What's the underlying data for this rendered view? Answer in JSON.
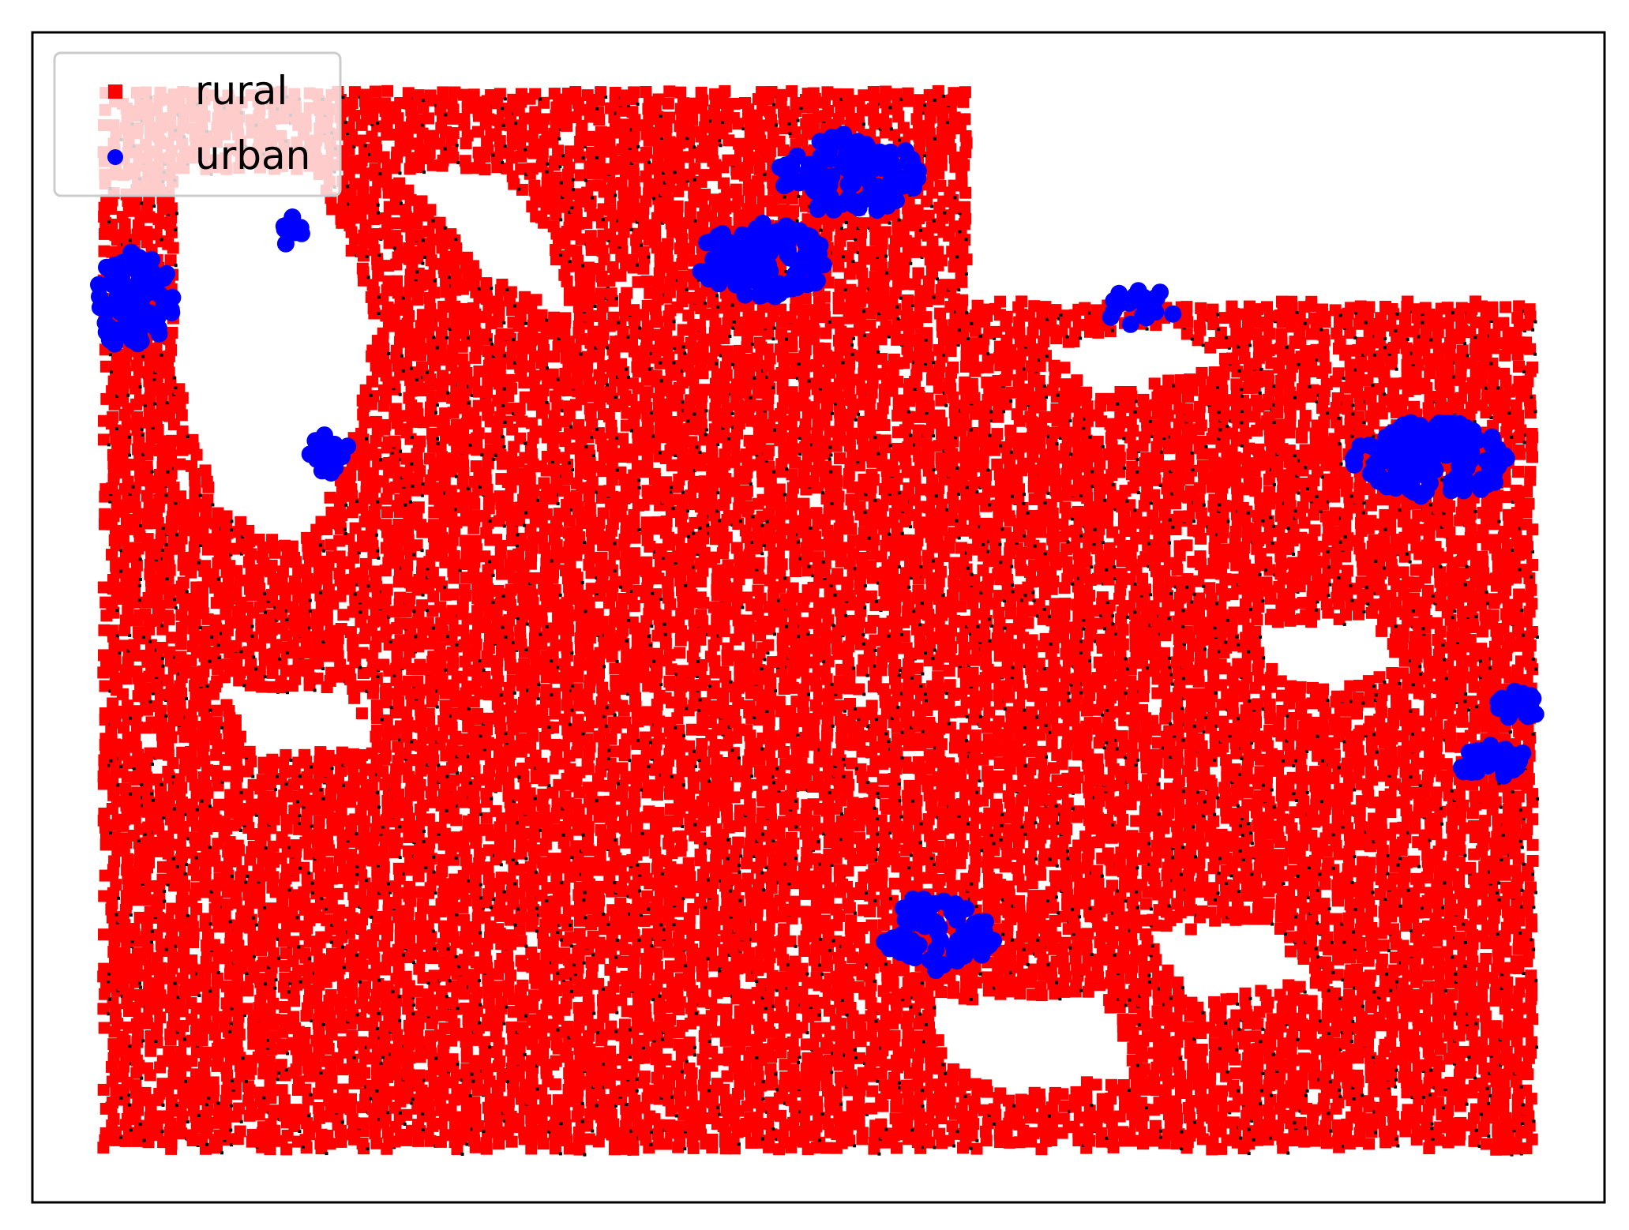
{
  "chart_data": {
    "type": "scatter",
    "title": "",
    "xlabel": "",
    "ylabel": "",
    "xlim": [
      0,
      100
    ],
    "ylim": [
      0,
      100
    ],
    "ticks_visible": false,
    "grid": false,
    "legend": {
      "placement": "top-left",
      "entries": [
        {
          "label": "rural",
          "marker": "square",
          "color": "#ff0000"
        },
        {
          "label": "urban",
          "marker": "circle",
          "color": "#0000ff"
        }
      ]
    },
    "series": [
      {
        "name": "rural",
        "color": "#ff0000",
        "marker": "square",
        "region": {
          "outline": [
            [
              4.5,
              95
            ],
            [
              59.5,
              95
            ],
            [
              59.5,
              77
            ],
            [
              95.5,
              77
            ],
            [
              95.5,
              4.5
            ],
            [
              4.5,
              4.5
            ]
          ],
          "holes": [
            [
              [
                9,
                88
              ],
              [
                18,
                88
              ],
              [
                22,
                75
              ],
              [
                20,
                63
              ],
              [
                17,
                56
              ],
              [
                12,
                59
              ],
              [
                9,
                71
              ]
            ],
            [
              [
                23,
                88
              ],
              [
                30,
                88
              ],
              [
                33,
                82
              ],
              [
                34,
                76
              ],
              [
                29,
                79
              ],
              [
                26,
                84
              ]
            ],
            [
              [
                64,
                73
              ],
              [
                72,
                75
              ],
              [
                76,
                72
              ],
              [
                68,
                69
              ]
            ],
            [
              [
                78,
                49
              ],
              [
                85,
                50
              ],
              [
                87,
                46
              ],
              [
                83,
                44
              ],
              [
                79,
                45
              ]
            ],
            [
              [
                57,
                17
              ],
              [
                68,
                18
              ],
              [
                70,
                11
              ],
              [
                62,
                9
              ],
              [
                58,
                12
              ]
            ],
            [
              [
                71,
                23
              ],
              [
                79,
                24
              ],
              [
                81,
                19
              ],
              [
                74,
                17
              ]
            ],
            [
              [
                12,
                44
              ],
              [
                20,
                44
              ],
              [
                22,
                39
              ],
              [
                14,
                38
              ]
            ]
          ]
        }
      },
      {
        "name": "urban",
        "color": "#0000ff",
        "marker": "circle",
        "clusters": [
          {
            "x": 6.5,
            "y": 77,
            "rx": 2.5,
            "ry": 4.5,
            "n": 90
          },
          {
            "x": 16.5,
            "y": 83,
            "rx": 0.7,
            "ry": 1.3,
            "n": 12
          },
          {
            "x": 18.8,
            "y": 64,
            "rx": 1.4,
            "ry": 1.7,
            "n": 20
          },
          {
            "x": 52,
            "y": 88,
            "rx": 4.5,
            "ry": 3.5,
            "n": 110
          },
          {
            "x": 46.5,
            "y": 80.5,
            "rx": 4.2,
            "ry": 3.2,
            "n": 100
          },
          {
            "x": 70.5,
            "y": 76.5,
            "rx": 2.2,
            "ry": 1.7,
            "n": 25
          },
          {
            "x": 89,
            "y": 63.5,
            "rx": 5,
            "ry": 3.3,
            "n": 140
          },
          {
            "x": 94.5,
            "y": 42.5,
            "rx": 1.5,
            "ry": 1.2,
            "n": 30
          },
          {
            "x": 93,
            "y": 37.5,
            "rx": 2.2,
            "ry": 1.6,
            "n": 35
          },
          {
            "x": 57.5,
            "y": 23,
            "rx": 3.7,
            "ry": 3.2,
            "n": 70
          }
        ]
      }
    ]
  }
}
